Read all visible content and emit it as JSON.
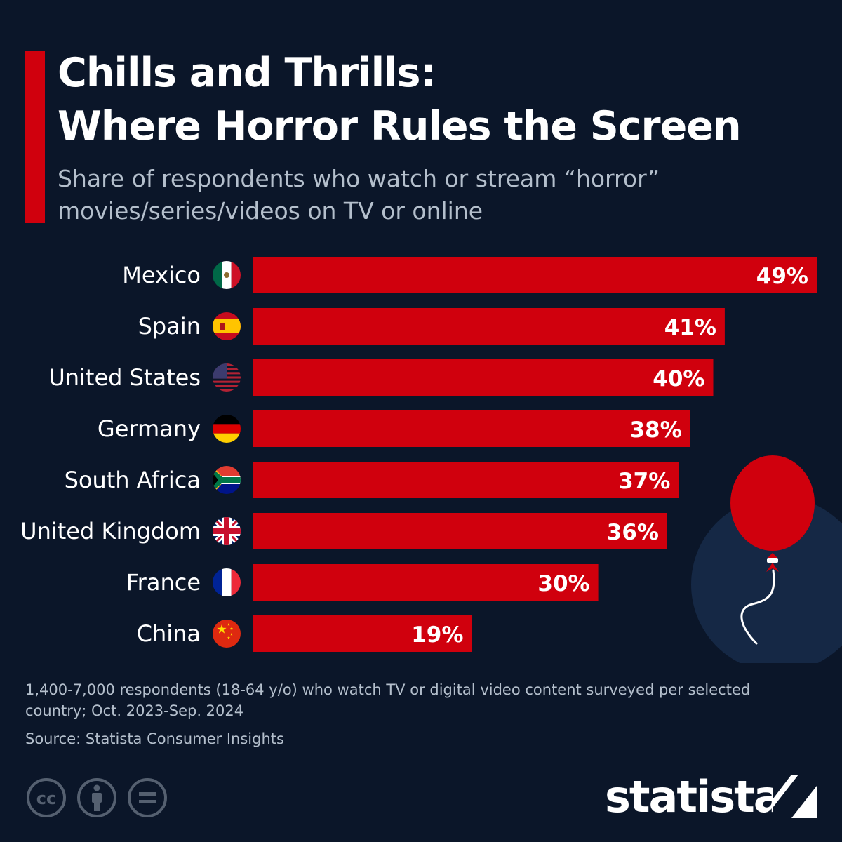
{
  "header": {
    "title_lines": [
      "Chills and Thrills:",
      "Where Horror Rules the Screen"
    ],
    "subtitle_lines": [
      "Share of respondents who watch or stream “horror”",
      "movies/series/videos on TV or online"
    ],
    "accent_color": "#d0000d"
  },
  "chart_data": {
    "type": "bar",
    "orientation": "horizontal",
    "categories": [
      "Mexico",
      "Spain",
      "United States",
      "Germany",
      "South Africa",
      "United Kingdom",
      "France",
      "China"
    ],
    "values": [
      49,
      41,
      40,
      38,
      37,
      36,
      30,
      19
    ],
    "value_labels": [
      "49%",
      "41%",
      "40%",
      "38%",
      "37%",
      "36%",
      "30%",
      "19%"
    ],
    "flags": [
      "mexico-flag-icon",
      "spain-flag-icon",
      "usa-flag-icon",
      "germany-flag-icon",
      "south-africa-flag-icon",
      "uk-flag-icon",
      "france-flag-icon",
      "china-flag-icon"
    ],
    "unit": "%",
    "xlim": [
      0,
      49
    ],
    "grid": false,
    "bar_color": "#d0000d",
    "label_color": "#ffffff"
  },
  "footer": {
    "footnote_lines": [
      "1,400-7,000 respondents (18-64 y/o) who watch TV or digital video content surveyed per selected",
      "country; Oct. 2023-Sep. 2024"
    ],
    "source": "Source: Statista Consumer Insights",
    "license_icons": [
      "creative-commons-icon",
      "attribution-icon",
      "no-derivatives-icon"
    ],
    "license_labels": [
      "cc",
      "i",
      "="
    ],
    "brand": "statista",
    "brand_mark": "statista-logo-icon"
  },
  "decoration": {
    "icon": "red-balloon-icon",
    "balloon_color": "#d0000d",
    "circle_color": "#152845"
  }
}
